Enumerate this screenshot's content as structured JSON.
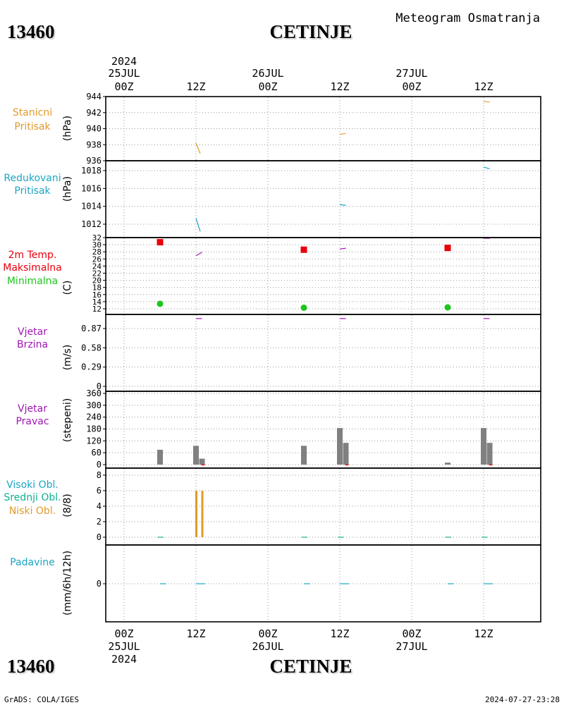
{
  "station_id": "13460",
  "station_name": "CETINJE",
  "header_title": "Meteogram Osmatranja",
  "footer_left": "GrADS: COLA/IGES",
  "footer_right": "2024-07-27-23:28",
  "time_axis": {
    "top_year": "2024",
    "bottom_year": "2024",
    "ticks": [
      {
        "hour": 0,
        "label": "00Z",
        "date": "25JUL"
      },
      {
        "hour": 12,
        "label": "12Z",
        "date": ""
      },
      {
        "hour": 24,
        "label": "00Z",
        "date": "26JUL"
      },
      {
        "hour": 36,
        "label": "12Z",
        "date": ""
      },
      {
        "hour": 48,
        "label": "00Z",
        "date": "27JUL"
      },
      {
        "hour": 60,
        "label": "12Z",
        "date": ""
      }
    ]
  },
  "colors": {
    "orange": "#e09a2c",
    "cyan": "#1ba6c4",
    "red": "#e8000b",
    "green": "#1ec51e",
    "purple": "#a015b4",
    "gray": "#808080",
    "teal": "#10b090",
    "grid": "#999999"
  },
  "chart_data": [
    {
      "type": "line",
      "panel": "pressure_station",
      "labels": [
        {
          "text": "Stanicni",
          "color": "#e09a2c"
        },
        {
          "text": "Pritisak",
          "color": "#e09a2c"
        }
      ],
      "unit": "(hPa)",
      "ylim": [
        936,
        944
      ],
      "yticks": [
        936,
        938,
        940,
        942,
        944
      ],
      "segments": [
        {
          "color": "#e09a2c",
          "points": [
            [
              12,
              938.2
            ],
            [
              12.7,
              936.9
            ]
          ]
        },
        {
          "color": "#e09a2c",
          "points": [
            [
              36,
              939.3
            ],
            [
              37,
              939.4
            ]
          ]
        },
        {
          "color": "#e09a2c",
          "points": [
            [
              60,
              943.4
            ],
            [
              61,
              943.3
            ]
          ]
        }
      ]
    },
    {
      "type": "line",
      "panel": "pressure_reduced",
      "labels": [
        {
          "text": "Redukovani",
          "color": "#1ba6c4"
        },
        {
          "text": "Pritisak",
          "color": "#1ba6c4"
        }
      ],
      "unit": "(hPa)",
      "ylim": [
        1010.5,
        1019.3
      ],
      "yticks": [
        1012,
        1014,
        1016,
        1018
      ],
      "segments": [
        {
          "color": "#1ba6c4",
          "points": [
            [
              12,
              1012.7
            ],
            [
              12.7,
              1011.2
            ]
          ]
        },
        {
          "color": "#1ba6c4",
          "points": [
            [
              36,
              1014.2
            ],
            [
              37,
              1014.1
            ]
          ]
        },
        {
          "color": "#1ba6c4",
          "points": [
            [
              60,
              1018.4
            ],
            [
              61,
              1018.2
            ]
          ]
        }
      ]
    },
    {
      "type": "scatter",
      "panel": "temperature",
      "labels": [
        {
          "text": "2m Temp.",
          "color": "#e8000b"
        },
        {
          "text": "Maksimalna",
          "color": "#e8000b"
        },
        {
          "text": "Minimalna",
          "color": "#1ec51e"
        }
      ],
      "unit": "(C)",
      "ylim": [
        10.5,
        32
      ],
      "yticks": [
        12,
        14,
        16,
        18,
        20,
        22,
        24,
        26,
        28,
        30,
        32
      ],
      "max_points": [
        [
          6,
          30.7
        ],
        [
          30,
          28.6
        ],
        [
          54,
          29.1
        ]
      ],
      "min_points": [
        [
          6,
          13.4
        ],
        [
          30,
          12.3
        ],
        [
          54,
          12.4
        ]
      ],
      "segments": [
        {
          "color": "#a015b4",
          "points": [
            [
              12,
              26.9
            ],
            [
              13,
              27.9
            ]
          ]
        },
        {
          "color": "#a015b4",
          "points": [
            [
              36,
              28.8
            ],
            [
              37,
              29.0
            ]
          ]
        },
        {
          "color": "#a015b4",
          "points": [
            [
              60,
              31.8
            ],
            [
              61,
              31.8
            ]
          ]
        }
      ]
    },
    {
      "type": "line",
      "panel": "wind_speed",
      "labels": [
        {
          "text": "Vjetar",
          "color": "#a015b4"
        },
        {
          "text": "Brzina",
          "color": "#a015b4"
        }
      ],
      "unit": "(m/s)",
      "ylim": [
        0,
        1.1
      ],
      "yticks": [
        0,
        0.29,
        0.58,
        0.87
      ],
      "segments": [
        {
          "color": "#a015b4",
          "points": [
            [
              12,
              1.02
            ],
            [
              13,
              1.02
            ]
          ]
        },
        {
          "color": "#a015b4",
          "points": [
            [
              36,
              1.02
            ],
            [
              37,
              1.02
            ]
          ]
        },
        {
          "color": "#a015b4",
          "points": [
            [
              60,
              1.02
            ],
            [
              61,
              1.02
            ]
          ]
        }
      ]
    },
    {
      "type": "bar",
      "panel": "wind_direction",
      "labels": [
        {
          "text": "Vjetar",
          "color": "#a015b4"
        },
        {
          "text": "Pravac",
          "color": "#a015b4"
        }
      ],
      "unit": "(stepeni)",
      "ylim": [
        0,
        360
      ],
      "yticks": [
        0,
        60,
        120,
        180,
        240,
        300,
        360
      ],
      "bars": [
        {
          "x": 6,
          "value": 75
        },
        {
          "x": 12,
          "value": 95
        },
        {
          "x": 13,
          "value": 30
        },
        {
          "x": 30,
          "value": 95
        },
        {
          "x": 36,
          "value": 185
        },
        {
          "x": 37,
          "value": 110
        },
        {
          "x": 54,
          "value": 10
        },
        {
          "x": 60,
          "value": 185
        },
        {
          "x": 61,
          "value": 110
        }
      ]
    },
    {
      "type": "bar",
      "panel": "clouds",
      "labels": [
        {
          "text": "Visoki Obl.",
          "color": "#1ba6c4"
        },
        {
          "text": "Srednji Obl.",
          "color": "#10b090"
        },
        {
          "text": "Niski Obl.",
          "color": "#e09a2c"
        }
      ],
      "unit": "(8/8)",
      "ylim": [
        -0.3,
        8.6
      ],
      "yticks": [
        0,
        2,
        4,
        6,
        8
      ],
      "bars": [
        {
          "x": 12,
          "value": 6
        },
        {
          "x": 13,
          "value": 6
        }
      ]
    },
    {
      "type": "line",
      "panel": "precipitation",
      "labels": [
        {
          "text": "Padavine",
          "color": "#1ba6c4"
        }
      ],
      "unit": "(mm/6h/12h)",
      "ylim": [
        -1,
        1
      ],
      "yticks": [
        0
      ],
      "segments": [
        {
          "color": "#1ba6c4",
          "points": [
            [
              6,
              0
            ],
            [
              7,
              0
            ]
          ]
        },
        {
          "color": "#1ba6c4",
          "points": [
            [
              12,
              0
            ],
            [
              13.5,
              0
            ]
          ]
        },
        {
          "color": "#1ba6c4",
          "points": [
            [
              30,
              0
            ],
            [
              31,
              0
            ]
          ]
        },
        {
          "color": "#1ba6c4",
          "points": [
            [
              36,
              0
            ],
            [
              37.5,
              0
            ]
          ]
        },
        {
          "color": "#1ba6c4",
          "points": [
            [
              54,
              0
            ],
            [
              55,
              0
            ]
          ]
        },
        {
          "color": "#1ba6c4",
          "points": [
            [
              60,
              0
            ],
            [
              61.5,
              0
            ]
          ]
        }
      ]
    }
  ]
}
